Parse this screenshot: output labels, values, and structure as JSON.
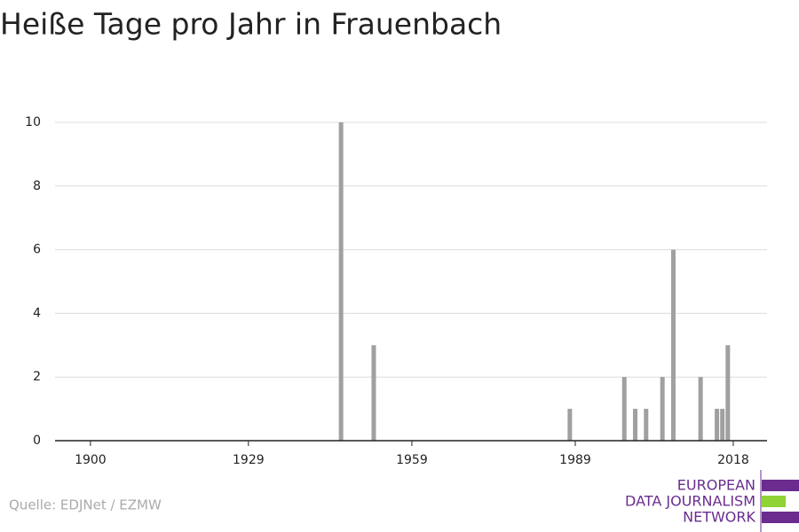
{
  "chart_data": {
    "type": "bar",
    "title": "Heiße Tage pro Jahr in Frauenbach",
    "x": [
      1946,
      1952,
      1988,
      1998,
      2000,
      2002,
      2005,
      2007,
      2012,
      2015,
      2016,
      2017
    ],
    "values": [
      10,
      3,
      1,
      2,
      1,
      1,
      2,
      6,
      2,
      1,
      1,
      3
    ],
    "color": "#a0a0a0",
    "xlim": [
      1893.5,
      2024.2
    ],
    "xticks": [
      1900,
      1929,
      1959,
      1989,
      2018
    ],
    "ylim": [
      0,
      10
    ],
    "yticks": [
      0,
      2,
      4,
      6,
      8,
      10
    ],
    "grid": true,
    "source": "Quelle: EDJNet / EZMW",
    "logo": [
      "EUROPEAN",
      "DATA JOURNALISM",
      "NETWORK"
    ]
  }
}
